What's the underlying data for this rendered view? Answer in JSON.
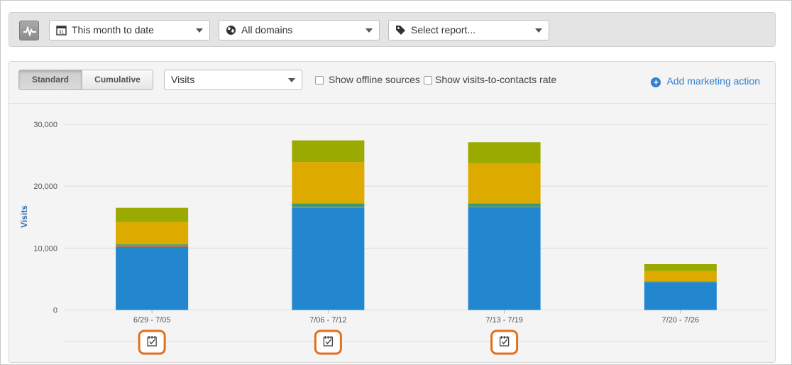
{
  "filters": {
    "date_range": "This month to date",
    "domain": "All domains",
    "report": "Select report..."
  },
  "toolbar": {
    "view_standard": "Standard",
    "view_cumulative": "Cumulative",
    "metric": "Visits",
    "offline_sources": "Show offline sources",
    "visits_to_contacts": "Show visits-to-contacts rate",
    "add_action": "Add marketing action"
  },
  "colors": {
    "accent": "#2f7fd0",
    "marker_ring": "#e07020"
  },
  "icons": {
    "activity": "pulse-icon",
    "calendar": "calendar-icon",
    "globe": "globe-icon",
    "tag": "tag-icon",
    "marketing_action": "calendar-check-icon"
  },
  "chart_data": {
    "type": "bar",
    "stacked": true,
    "ylabel": "Visits",
    "ylim": [
      0,
      30000
    ],
    "yticks": [
      "0",
      "10,000",
      "20,000",
      "30,000"
    ],
    "ytick_values": [
      0,
      10000,
      20000,
      30000
    ],
    "grid": true,
    "categories": [
      "6/29 - 7/05",
      "7/06 - 7/12",
      "7/13 - 7/19",
      "7/20 - 7/26"
    ],
    "series": [
      {
        "color": "#2287cf",
        "values": [
          10200,
          16500,
          16600,
          4500
        ]
      },
      {
        "color": "#c9742d",
        "values": [
          200,
          200,
          100,
          0
        ]
      },
      {
        "color": "#2e9c7e",
        "values": [
          200,
          500,
          500,
          100
        ]
      },
      {
        "color": "#ddaa00",
        "values": [
          3600,
          6700,
          6500,
          1700
        ]
      },
      {
        "color": "#9aaa00",
        "values": [
          2300,
          3500,
          3400,
          1100
        ]
      }
    ],
    "action_markers": [
      true,
      true,
      true,
      false
    ]
  }
}
